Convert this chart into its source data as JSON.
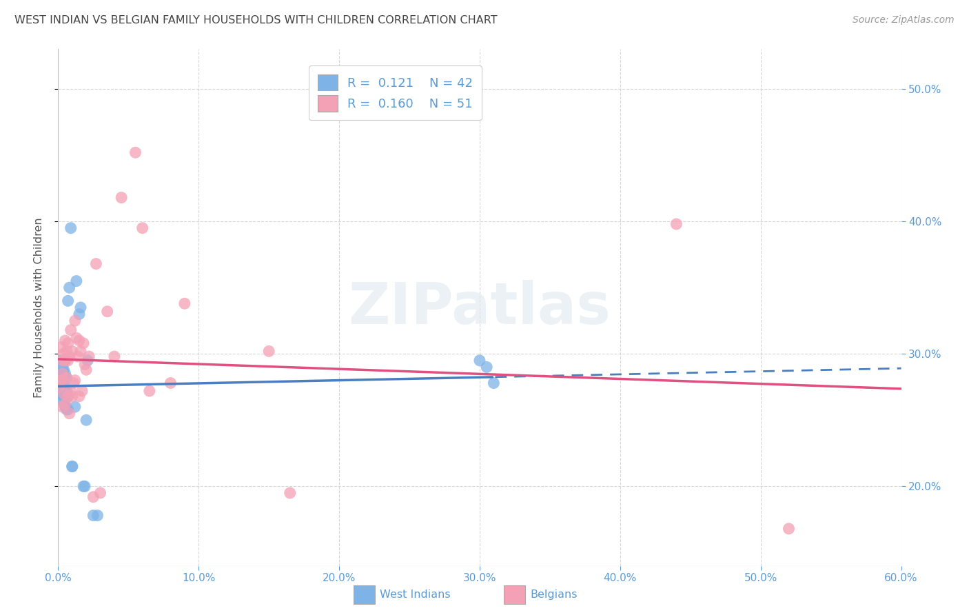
{
  "title": "WEST INDIAN VS BELGIAN FAMILY HOUSEHOLDS WITH CHILDREN CORRELATION CHART",
  "source": "Source: ZipAtlas.com",
  "ylabel": "Family Households with Children",
  "xlabel_ticks": [
    "0.0%",
    "10.0%",
    "20.0%",
    "30.0%",
    "40.0%",
    "50.0%",
    "60.0%"
  ],
  "xlabel_vals": [
    0.0,
    0.1,
    0.2,
    0.3,
    0.4,
    0.5,
    0.6
  ],
  "ylabel_ticks": [
    "20.0%",
    "30.0%",
    "40.0%",
    "50.0%"
  ],
  "ylabel_vals": [
    0.2,
    0.3,
    0.4,
    0.5
  ],
  "xlim": [
    0.0,
    0.6
  ],
  "ylim": [
    0.14,
    0.53
  ],
  "west_indian_R": 0.121,
  "west_indian_N": 42,
  "belgian_R": 0.16,
  "belgian_N": 51,
  "legend_label_wi": "West Indians",
  "legend_label_be": "Belgians",
  "color_wi": "#7EB3E8",
  "color_be": "#F4A0B5",
  "line_color_wi": "#4A7EC0",
  "line_color_be": "#E05080",
  "watermark": "ZIPatlas",
  "background_color": "#FFFFFF",
  "grid_color": "#CCCCCC",
  "title_color": "#444444",
  "tick_color": "#5B9BD5",
  "wi_x": [
    0.001,
    0.001,
    0.002,
    0.002,
    0.002,
    0.003,
    0.003,
    0.003,
    0.003,
    0.004,
    0.004,
    0.004,
    0.004,
    0.004,
    0.005,
    0.005,
    0.005,
    0.005,
    0.005,
    0.006,
    0.006,
    0.006,
    0.007,
    0.007,
    0.007,
    0.008,
    0.009,
    0.01,
    0.01,
    0.012,
    0.013,
    0.015,
    0.016,
    0.018,
    0.019,
    0.02,
    0.021,
    0.025,
    0.028,
    0.3,
    0.305,
    0.31
  ],
  "wi_y": [
    0.285,
    0.295,
    0.27,
    0.28,
    0.265,
    0.28,
    0.275,
    0.282,
    0.29,
    0.268,
    0.272,
    0.278,
    0.288,
    0.295,
    0.26,
    0.265,
    0.275,
    0.285,
    0.295,
    0.258,
    0.272,
    0.282,
    0.258,
    0.268,
    0.34,
    0.35,
    0.395,
    0.215,
    0.215,
    0.26,
    0.355,
    0.33,
    0.335,
    0.2,
    0.2,
    0.25,
    0.295,
    0.178,
    0.178,
    0.295,
    0.29,
    0.278
  ],
  "be_x": [
    0.001,
    0.002,
    0.002,
    0.003,
    0.003,
    0.003,
    0.004,
    0.004,
    0.004,
    0.005,
    0.005,
    0.005,
    0.006,
    0.006,
    0.007,
    0.007,
    0.007,
    0.008,
    0.008,
    0.009,
    0.009,
    0.01,
    0.01,
    0.011,
    0.012,
    0.012,
    0.013,
    0.014,
    0.015,
    0.015,
    0.016,
    0.017,
    0.018,
    0.019,
    0.02,
    0.022,
    0.025,
    0.027,
    0.03,
    0.035,
    0.04,
    0.045,
    0.055,
    0.06,
    0.065,
    0.08,
    0.09,
    0.15,
    0.165,
    0.44,
    0.52
  ],
  "be_y": [
    0.275,
    0.28,
    0.305,
    0.285,
    0.295,
    0.26,
    0.27,
    0.28,
    0.3,
    0.262,
    0.295,
    0.31,
    0.282,
    0.302,
    0.268,
    0.308,
    0.295,
    0.255,
    0.298,
    0.272,
    0.318,
    0.268,
    0.302,
    0.278,
    0.325,
    0.28,
    0.312,
    0.298,
    0.268,
    0.31,
    0.302,
    0.272,
    0.308,
    0.292,
    0.288,
    0.298,
    0.192,
    0.368,
    0.195,
    0.332,
    0.298,
    0.418,
    0.452,
    0.395,
    0.272,
    0.278,
    0.338,
    0.302,
    0.195,
    0.398,
    0.168
  ]
}
